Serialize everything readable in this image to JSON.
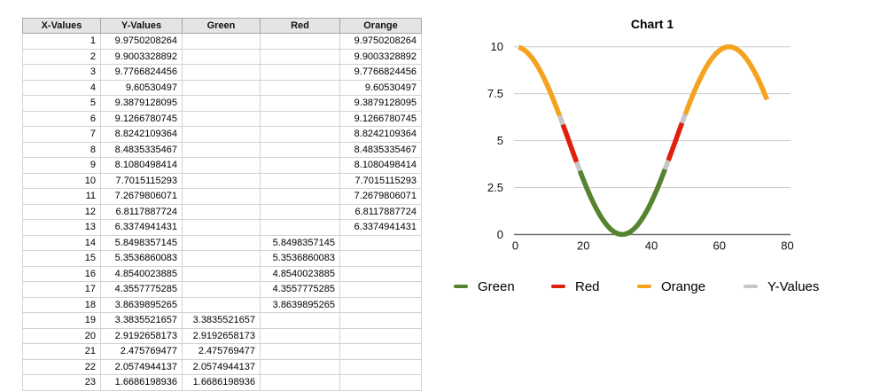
{
  "table": {
    "headers": [
      "X-Values",
      "Y-Values",
      "Green",
      "Red",
      "Orange"
    ],
    "rows": [
      [
        "1",
        "9.9750208264",
        "",
        "",
        "9.9750208264"
      ],
      [
        "2",
        "9.9003328892",
        "",
        "",
        "9.9003328892"
      ],
      [
        "3",
        "9.7766824456",
        "",
        "",
        "9.7766824456"
      ],
      [
        "4",
        "9.60530497",
        "",
        "",
        "9.60530497"
      ],
      [
        "5",
        "9.3879128095",
        "",
        "",
        "9.3879128095"
      ],
      [
        "6",
        "9.1266780745",
        "",
        "",
        "9.1266780745"
      ],
      [
        "7",
        "8.8242109364",
        "",
        "",
        "8.8242109364"
      ],
      [
        "8",
        "8.4835335467",
        "",
        "",
        "8.4835335467"
      ],
      [
        "9",
        "8.1080498414",
        "",
        "",
        "8.1080498414"
      ],
      [
        "10",
        "7.7015115293",
        "",
        "",
        "7.7015115293"
      ],
      [
        "11",
        "7.2679806071",
        "",
        "",
        "7.2679806071"
      ],
      [
        "12",
        "6.8117887724",
        "",
        "",
        "6.8117887724"
      ],
      [
        "13",
        "6.3374941431",
        "",
        "",
        "6.3374941431"
      ],
      [
        "14",
        "5.8498357145",
        "",
        "5.8498357145",
        ""
      ],
      [
        "15",
        "5.3536860083",
        "",
        "5.3536860083",
        ""
      ],
      [
        "16",
        "4.8540023885",
        "",
        "4.8540023885",
        ""
      ],
      [
        "17",
        "4.3557775285",
        "",
        "4.3557775285",
        ""
      ],
      [
        "18",
        "3.8639895265",
        "",
        "3.8639895265",
        ""
      ],
      [
        "19",
        "3.3835521657",
        "3.3835521657",
        "",
        ""
      ],
      [
        "20",
        "2.9192658173",
        "2.9192658173",
        "",
        ""
      ],
      [
        "21",
        "2.475769477",
        "2.475769477",
        "",
        ""
      ],
      [
        "22",
        "2.0574944137",
        "2.0574944137",
        "",
        ""
      ],
      [
        "23",
        "1.6686198936",
        "1.6686198936",
        "",
        ""
      ]
    ]
  },
  "chart": {
    "title": "Chart 1",
    "legend": [
      {
        "label": "Green",
        "color": "#55832E"
      },
      {
        "label": "Red",
        "color": "#E01F0C"
      },
      {
        "label": "Orange",
        "color": "#F7A21D"
      },
      {
        "label": "Y-Values",
        "color": "#C6C6C6"
      }
    ]
  },
  "chart_data": {
    "type": "line",
    "title": "Chart 1",
    "x_range": [
      1,
      74
    ],
    "formula": {
      "offset": 5,
      "amplitude": 5,
      "omega": 0.1,
      "description": "y = 5 + 5*cos(x/10)"
    },
    "xlim": [
      0,
      81
    ],
    "ylim": [
      0,
      10
    ],
    "x_ticks": [
      0,
      20,
      40,
      60,
      80
    ],
    "y_ticks": [
      0,
      2.5,
      5,
      7.5,
      10
    ],
    "grid": true,
    "legend_position": "bottom",
    "series": [
      {
        "name": "Y-Values",
        "color": "#C6C6C6",
        "segments": [
          [
            1,
            74
          ]
        ]
      },
      {
        "name": "Green",
        "color": "#55832E",
        "segments": [
          [
            19,
            44
          ]
        ]
      },
      {
        "name": "Red",
        "color": "#E01F0C",
        "segments": [
          [
            14,
            18
          ],
          [
            45,
            49
          ]
        ]
      },
      {
        "name": "Orange",
        "color": "#F7A21D",
        "segments": [
          [
            1,
            13
          ],
          [
            50,
            74
          ]
        ]
      }
    ],
    "colors": {
      "gridline": "#cccccc",
      "axis": "#707070"
    }
  }
}
